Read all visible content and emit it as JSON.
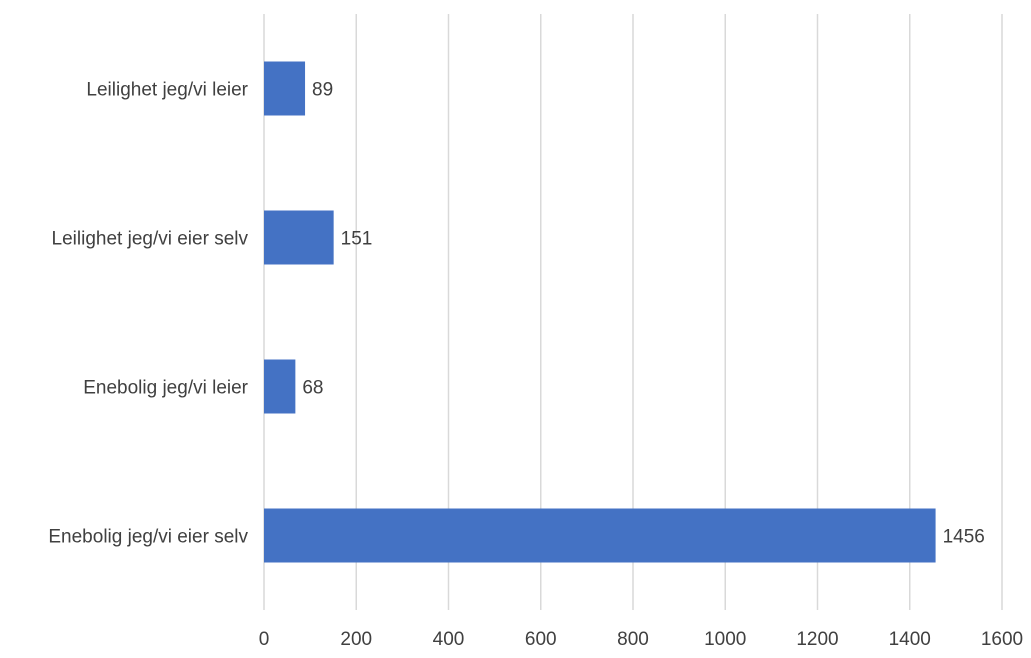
{
  "chart_data": {
    "type": "bar",
    "orientation": "horizontal",
    "categories": [
      "Enebolig jeg/vi eier selv",
      "Enebolig jeg/vi leier",
      "Leilighet jeg/vi eier selv",
      "Leilighet jeg/vi leier"
    ],
    "values": [
      1456,
      68,
      151,
      89
    ],
    "xlim": [
      0,
      1600
    ],
    "xticks": [
      0,
      200,
      400,
      600,
      800,
      1000,
      1200,
      1400,
      1600
    ],
    "grid": true,
    "legend": "none",
    "bar_color": "#4472c4",
    "title": "",
    "xlabel": "",
    "ylabel": ""
  }
}
